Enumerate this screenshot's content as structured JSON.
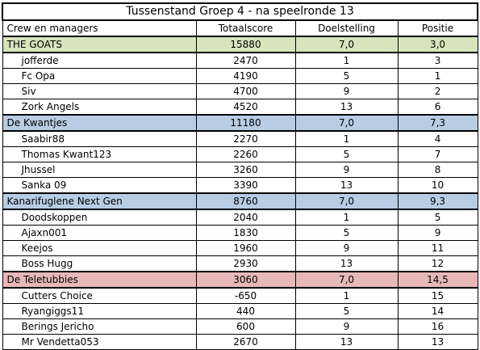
{
  "title": "Tussenstand Groep 4 - na speelronde 13",
  "columns": [
    "Crew en managers",
    "Totaalscore",
    "Doelstelling",
    "Positie"
  ],
  "colors": {
    "goats": "#d8e4bc",
    "kwantjes": "#b8cce4",
    "kanari": "#b8cce4",
    "teletubbies": "#e6b8b7"
  },
  "teams": [
    {
      "name": "THE GOATS",
      "score": "15880",
      "goal": "7,0",
      "pos": "3,0",
      "color_key": "goats",
      "members": [
        {
          "name": "jofferde",
          "score": "2470",
          "goal": "1",
          "pos": "3"
        },
        {
          "name": "Fc Opa",
          "score": "4190",
          "goal": "5",
          "pos": "1"
        },
        {
          "name": "Siv",
          "score": "4700",
          "goal": "9",
          "pos": "2"
        },
        {
          "name": "Zork Angels",
          "score": "4520",
          "goal": "13",
          "pos": "6"
        }
      ]
    },
    {
      "name": "De Kwantjes",
      "score": "11180",
      "goal": "7,0",
      "pos": "7,3",
      "color_key": "kwantjes",
      "members": [
        {
          "name": "Saabir88",
          "score": "2270",
          "goal": "1",
          "pos": "4"
        },
        {
          "name": "Thomas Kwant123",
          "score": "2260",
          "goal": "5",
          "pos": "7"
        },
        {
          "name": "Jhussel",
          "score": "3260",
          "goal": "9",
          "pos": "8"
        },
        {
          "name": "Sanka 09",
          "score": "3390",
          "goal": "13",
          "pos": "10"
        }
      ]
    },
    {
      "name": "Kanarifuglene Next Gen",
      "score": "8760",
      "goal": "7,0",
      "pos": "9,3",
      "color_key": "kanari",
      "members": [
        {
          "name": "Doodskoppen",
          "score": "2040",
          "goal": "1",
          "pos": "5"
        },
        {
          "name": "Ajaxn001",
          "score": "1830",
          "goal": "5",
          "pos": "9"
        },
        {
          "name": "Keejos",
          "score": "1960",
          "goal": "9",
          "pos": "11"
        },
        {
          "name": "Boss Hugg",
          "score": "2930",
          "goal": "13",
          "pos": "12"
        }
      ]
    },
    {
      "name": "De Teletubbies",
      "score": "3060",
      "goal": "7,0",
      "pos": "14,5",
      "color_key": "teletubbies",
      "members": [
        {
          "name": "Cutters Choice",
          "score": "-650",
          "goal": "1",
          "pos": "15"
        },
        {
          "name": "Ryangiggs11",
          "score": "440",
          "goal": "5",
          "pos": "14"
        },
        {
          "name": "Berings Jericho",
          "score": "600",
          "goal": "9",
          "pos": "16"
        },
        {
          "name": "Mr Vendetta053",
          "score": "2670",
          "goal": "13",
          "pos": "13"
        }
      ]
    }
  ]
}
